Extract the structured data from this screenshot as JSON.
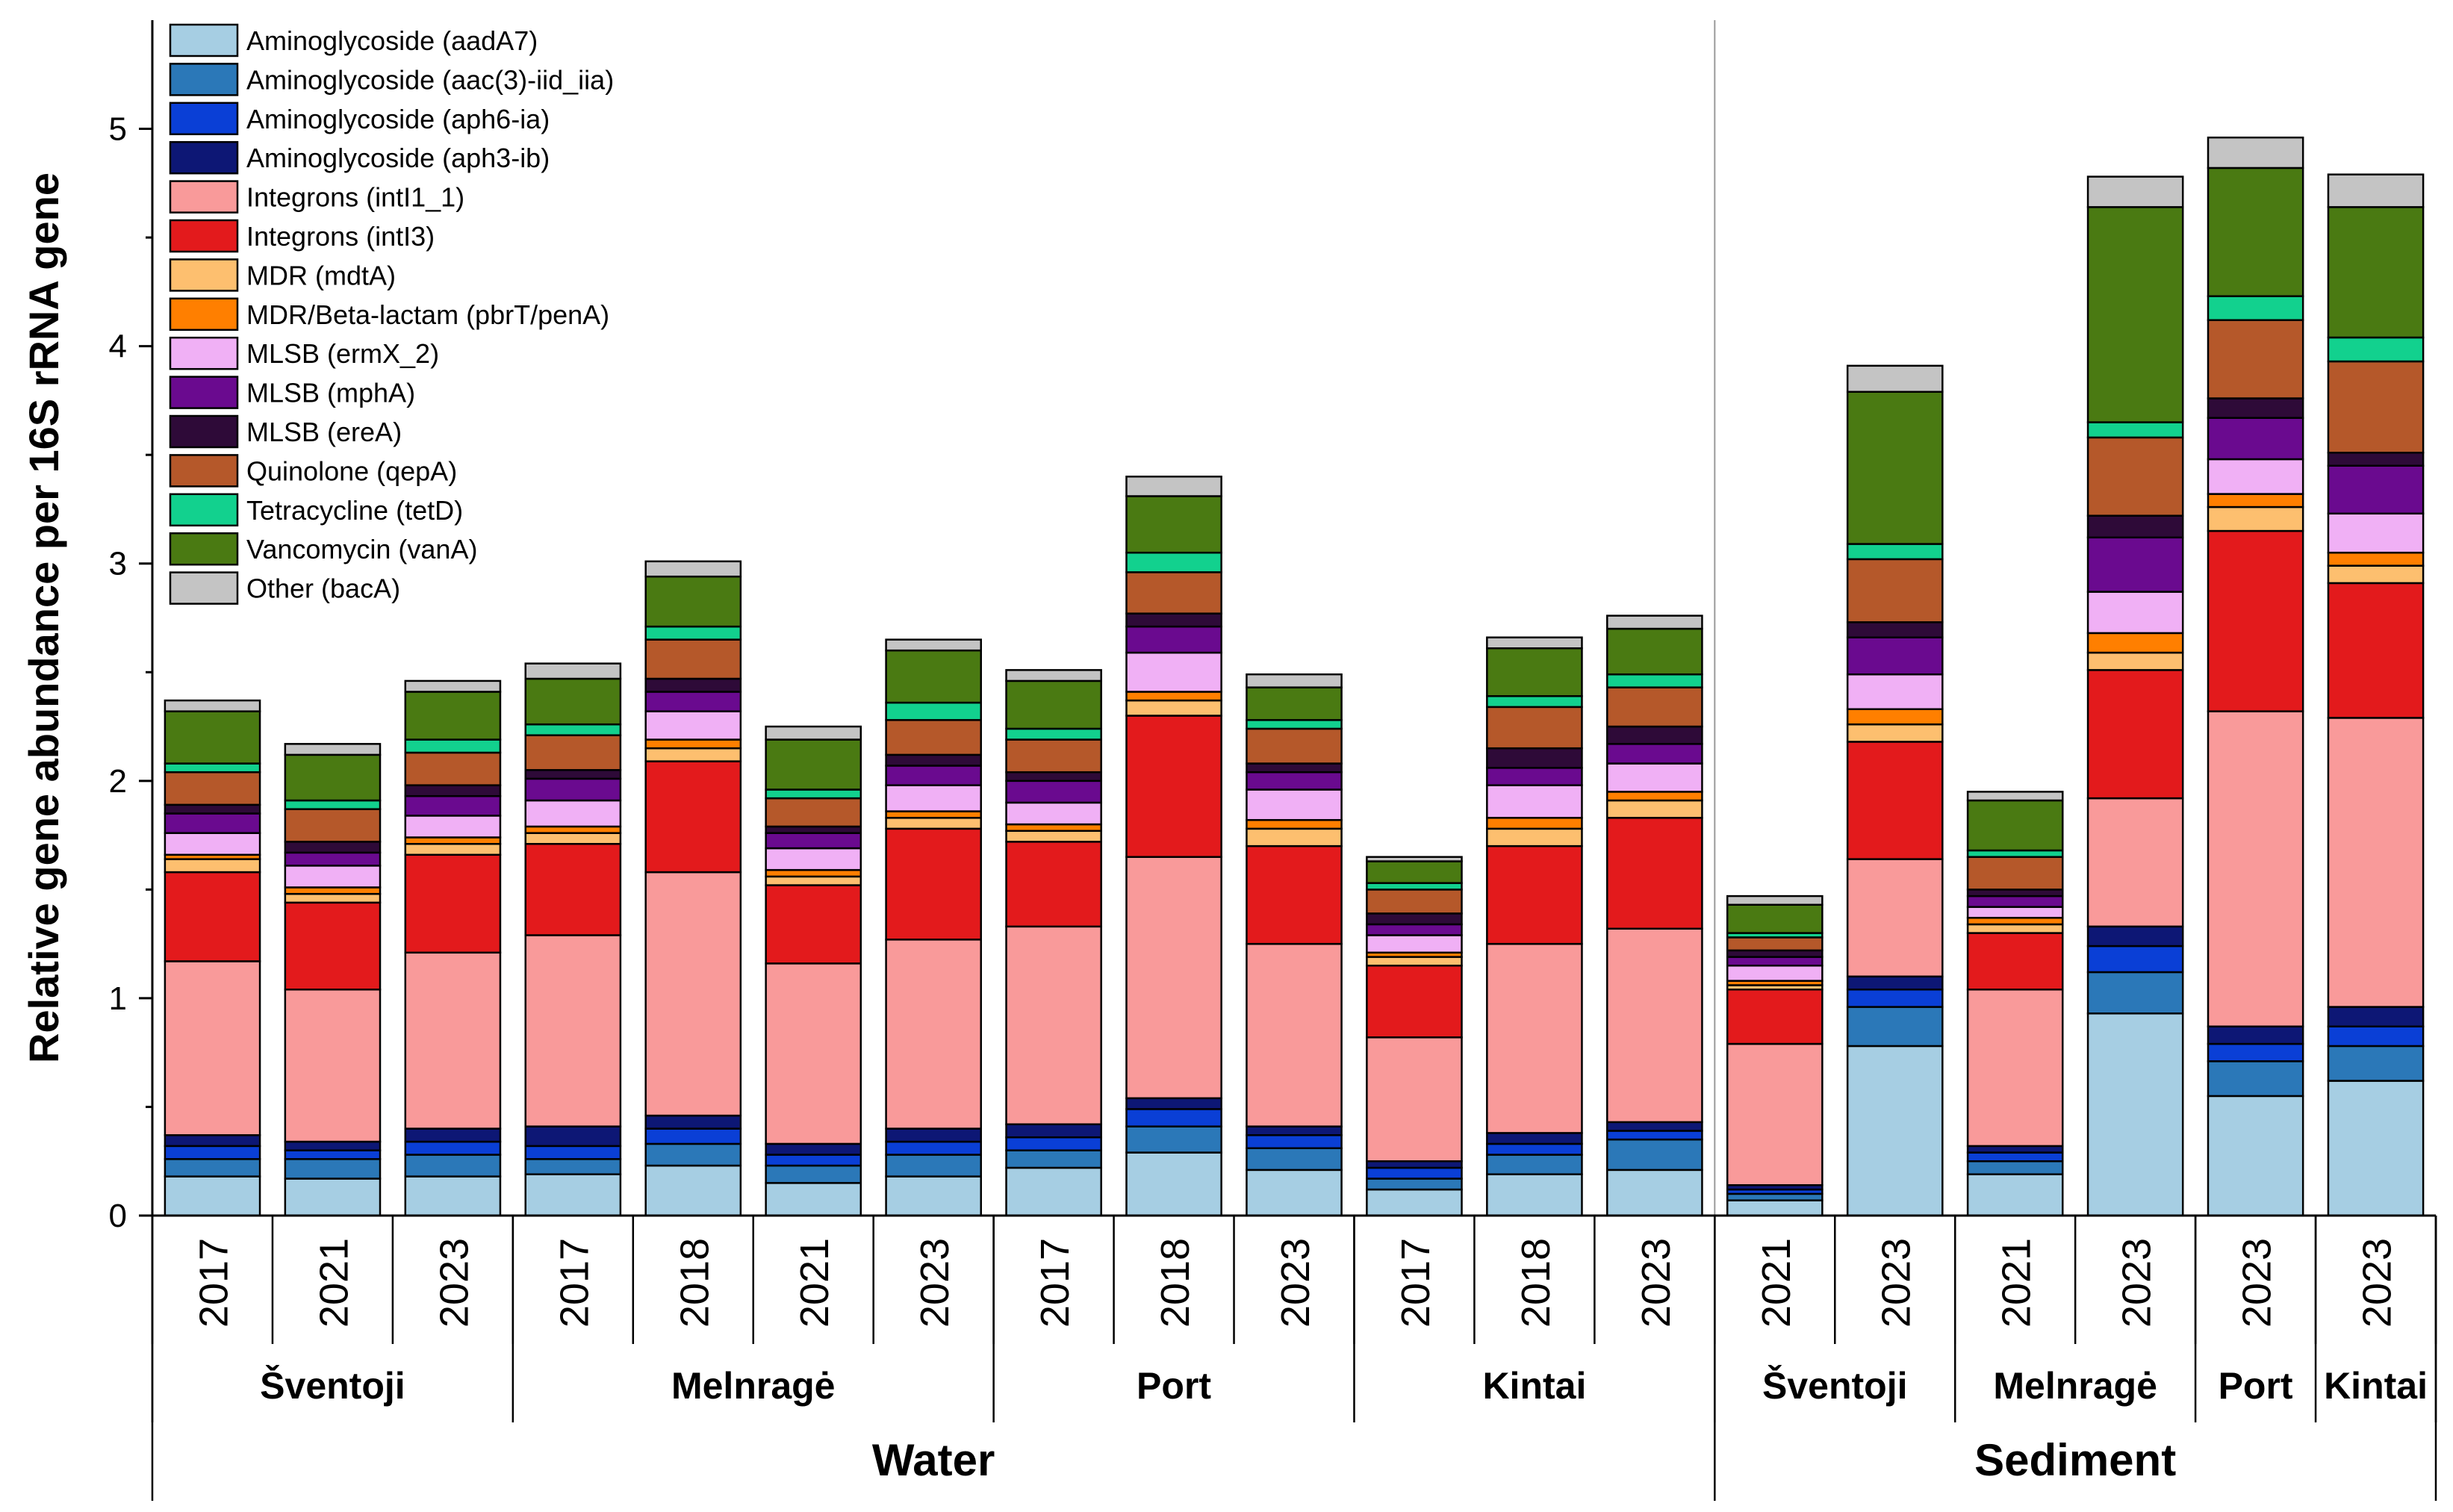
{
  "chart_data": {
    "type": "stacked-bar",
    "ylabel": "Relative gene abundance per 16S rRNA gene",
    "xlabel": "",
    "ylim": [
      0,
      5.5
    ],
    "yticks": [
      0,
      1,
      2,
      3,
      4,
      5
    ],
    "legend_position": "top-left",
    "series": [
      {
        "name": "Aminoglycoside (aadA7)",
        "color": "#a6cee3"
      },
      {
        "name": "Aminoglycoside (aac(3)-iid_iia)",
        "color": "#2b78b8"
      },
      {
        "name": "Aminoglycoside (aph6-ia)",
        "color": "#0a3fd6"
      },
      {
        "name": "Aminoglycoside (aph3-ib)",
        "color": "#0d1775"
      },
      {
        "name": "Integrons (intI1_1)",
        "color": "#f99a9a"
      },
      {
        "name": "Integrons (intI3)",
        "color": "#e31a1c"
      },
      {
        "name": "MDR (mdtA)",
        "color": "#fdbf6f"
      },
      {
        "name": "MDR/Beta-lactam (pbrT/penA)",
        "color": "#ff7f00"
      },
      {
        "name": "MLSB (ermX_2)",
        "color": "#f0b0f5"
      },
      {
        "name": "MLSB (mphA)",
        "color": "#6a0a8f"
      },
      {
        "name": "MLSB (ereA)",
        "color": "#2e0a38"
      },
      {
        "name": "Quinolone (qepA)",
        "color": "#b5582a"
      },
      {
        "name": "Tetracycline (tetD)",
        "color": "#12d18e"
      },
      {
        "name": "Vancomycin (vanA)",
        "color": "#4a7a12"
      },
      {
        "name": "Other (bacA)",
        "color": "#c4c4c4"
      }
    ],
    "categories": [
      "2017",
      "2021",
      "2023",
      "2017",
      "2018",
      "2021",
      "2023",
      "2017",
      "2018",
      "2023",
      "2017",
      "2018",
      "2023",
      "2021",
      "2023",
      "2021",
      "2023",
      "2023",
      "2023"
    ],
    "bars": [
      {
        "year": "2017",
        "values": [
          0.18,
          0.08,
          0.06,
          0.05,
          0.8,
          0.41,
          0.06,
          0.02,
          0.1,
          0.09,
          0.04,
          0.15,
          0.04,
          0.24,
          0.05
        ]
      },
      {
        "year": "2021",
        "values": [
          0.17,
          0.09,
          0.04,
          0.04,
          0.7,
          0.4,
          0.04,
          0.03,
          0.1,
          0.06,
          0.05,
          0.15,
          0.04,
          0.21,
          0.05
        ]
      },
      {
        "year": "2023",
        "values": [
          0.18,
          0.1,
          0.06,
          0.06,
          0.81,
          0.45,
          0.05,
          0.03,
          0.1,
          0.09,
          0.05,
          0.15,
          0.06,
          0.22,
          0.05
        ]
      },
      {
        "year": "2017",
        "values": [
          0.19,
          0.07,
          0.06,
          0.09,
          0.88,
          0.42,
          0.05,
          0.03,
          0.12,
          0.1,
          0.04,
          0.16,
          0.05,
          0.21,
          0.07
        ]
      },
      {
        "year": "2018",
        "values": [
          0.23,
          0.1,
          0.07,
          0.06,
          1.12,
          0.51,
          0.06,
          0.04,
          0.13,
          0.09,
          0.06,
          0.18,
          0.06,
          0.23,
          0.07
        ]
      },
      {
        "year": "2021",
        "values": [
          0.15,
          0.08,
          0.05,
          0.05,
          0.83,
          0.36,
          0.04,
          0.03,
          0.1,
          0.07,
          0.03,
          0.13,
          0.04,
          0.23,
          0.06
        ]
      },
      {
        "year": "2023",
        "values": [
          0.18,
          0.1,
          0.06,
          0.06,
          0.87,
          0.51,
          0.05,
          0.03,
          0.12,
          0.09,
          0.05,
          0.16,
          0.08,
          0.24,
          0.05
        ]
      },
      {
        "year": "2017",
        "values": [
          0.22,
          0.08,
          0.06,
          0.06,
          0.91,
          0.39,
          0.05,
          0.03,
          0.1,
          0.1,
          0.04,
          0.15,
          0.05,
          0.22,
          0.05
        ]
      },
      {
        "year": "2018",
        "values": [
          0.29,
          0.12,
          0.08,
          0.05,
          1.11,
          0.65,
          0.07,
          0.04,
          0.18,
          0.12,
          0.06,
          0.19,
          0.09,
          0.26,
          0.09
        ]
      },
      {
        "year": "2023",
        "values": [
          0.21,
          0.1,
          0.06,
          0.04,
          0.84,
          0.45,
          0.08,
          0.04,
          0.14,
          0.08,
          0.04,
          0.16,
          0.04,
          0.15,
          0.06
        ]
      },
      {
        "year": "2017",
        "values": [
          0.12,
          0.05,
          0.05,
          0.03,
          0.57,
          0.33,
          0.04,
          0.02,
          0.08,
          0.05,
          0.05,
          0.11,
          0.03,
          0.1,
          0.02
        ]
      },
      {
        "year": "2018",
        "values": [
          0.19,
          0.09,
          0.05,
          0.05,
          0.87,
          0.45,
          0.08,
          0.05,
          0.15,
          0.08,
          0.09,
          0.19,
          0.05,
          0.22,
          0.05
        ]
      },
      {
        "year": "2023",
        "values": [
          0.21,
          0.14,
          0.04,
          0.04,
          0.89,
          0.51,
          0.08,
          0.04,
          0.13,
          0.09,
          0.08,
          0.18,
          0.06,
          0.21,
          0.06
        ]
      },
      {
        "year": "2021",
        "values": [
          0.07,
          0.03,
          0.02,
          0.02,
          0.65,
          0.25,
          0.02,
          0.02,
          0.07,
          0.04,
          0.03,
          0.06,
          0.02,
          0.13,
          0.04
        ]
      },
      {
        "year": "2023",
        "values": [
          0.78,
          0.18,
          0.08,
          0.06,
          0.54,
          0.54,
          0.08,
          0.07,
          0.16,
          0.17,
          0.07,
          0.29,
          0.07,
          0.7,
          0.12
        ]
      },
      {
        "year": "2021",
        "values": [
          0.19,
          0.06,
          0.04,
          0.03,
          0.72,
          0.26,
          0.04,
          0.03,
          0.05,
          0.05,
          0.03,
          0.15,
          0.03,
          0.23,
          0.04
        ]
      },
      {
        "year": "2023",
        "values": [
          0.93,
          0.19,
          0.12,
          0.09,
          0.59,
          0.59,
          0.08,
          0.09,
          0.19,
          0.25,
          0.1,
          0.36,
          0.07,
          0.99,
          0.14
        ]
      },
      {
        "year": "2023",
        "values": [
          0.55,
          0.16,
          0.08,
          0.08,
          1.45,
          0.83,
          0.11,
          0.06,
          0.16,
          0.19,
          0.09,
          0.36,
          0.11,
          0.59,
          0.14
        ]
      },
      {
        "year": "2023",
        "values": [
          0.62,
          0.16,
          0.09,
          0.09,
          1.33,
          0.62,
          0.08,
          0.06,
          0.18,
          0.22,
          0.06,
          0.42,
          0.11,
          0.6,
          0.15
        ]
      }
    ],
    "sites": [
      {
        "label": "Šventoji",
        "from": 0,
        "to": 2
      },
      {
        "label": "Melnragė",
        "from": 3,
        "to": 6
      },
      {
        "label": "Port",
        "from": 7,
        "to": 9
      },
      {
        "label": "Kintai",
        "from": 10,
        "to": 12
      },
      {
        "label": "Šventoji",
        "from": 13,
        "to": 14
      },
      {
        "label": "Melnragė",
        "from": 15,
        "to": 16
      },
      {
        "label": "Port",
        "from": 17,
        "to": 17
      },
      {
        "label": "Kintai",
        "from": 18,
        "to": 18
      }
    ],
    "groups": [
      {
        "label": "Water",
        "from": 0,
        "to": 12
      },
      {
        "label": "Sediment",
        "from": 13,
        "to": 18
      }
    ]
  }
}
